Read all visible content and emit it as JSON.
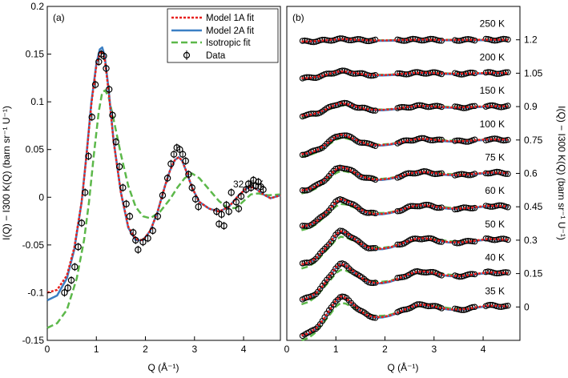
{
  "colors": {
    "model1a": "#e8201c",
    "model2a": "#3b7fc4",
    "isotropic": "#5cb84a",
    "data": "#000000"
  },
  "chart_data": [
    {
      "type": "line",
      "panel_label": "(a)",
      "annotation": "32. 5 K",
      "xlabel": "Q (Å⁻¹)",
      "ylabel": "I(Q) − I300 K(Q) (barn sr⁻¹ U⁻¹)",
      "xlim": [
        0,
        4.75
      ],
      "ylim": [
        -0.15,
        0.2
      ],
      "xticks": [
        0,
        1,
        2,
        3,
        4
      ],
      "xtick_labels": [
        "0",
        "1",
        "2",
        "3",
        "4"
      ],
      "yticks": [
        -0.15,
        -0.1,
        -0.05,
        0,
        0.05,
        0.1,
        0.15,
        0.2
      ],
      "ytick_labels": [
        "-0.15",
        "-0.1",
        "-0.05",
        "0",
        "0.05",
        "0.1",
        "0.15",
        "0.2"
      ],
      "legend": {
        "position": "top-right",
        "entries": [
          {
            "label": "Model 1A fit",
            "style": "dotted",
            "color": "#e8201c"
          },
          {
            "label": "Model 2A fit",
            "style": "solid",
            "color": "#3b7fc4"
          },
          {
            "label": "Isotropic fit",
            "style": "dashed",
            "color": "#5cb84a"
          },
          {
            "label": "Data",
            "style": "marker",
            "color": "#000000"
          }
        ]
      },
      "series": [
        {
          "name": "Model 2A fit",
          "x": [
            0.0,
            0.2,
            0.4,
            0.55,
            0.7,
            0.8,
            0.9,
            1.0,
            1.07,
            1.12,
            1.17,
            1.25,
            1.35,
            1.5,
            1.65,
            1.8,
            1.95,
            2.1,
            2.25,
            2.4,
            2.5,
            2.6,
            2.68,
            2.75,
            2.85,
            2.95,
            3.1,
            3.3,
            3.5,
            3.7,
            3.9,
            4.05,
            4.15,
            4.25,
            4.4,
            4.55,
            4.75
          ],
          "y": [
            -0.108,
            -0.103,
            -0.085,
            -0.055,
            -0.005,
            0.045,
            0.1,
            0.14,
            0.155,
            0.157,
            0.148,
            0.113,
            0.06,
            0.005,
            -0.032,
            -0.045,
            -0.045,
            -0.035,
            -0.015,
            0.012,
            0.028,
            0.039,
            0.042,
            0.038,
            0.025,
            0.01,
            -0.005,
            -0.012,
            -0.015,
            -0.01,
            0.002,
            0.009,
            0.011,
            0.009,
            0.003,
            -0.001,
            0.002
          ]
        },
        {
          "name": "Model 1A fit",
          "x": [
            0.0,
            0.2,
            0.4,
            0.55,
            0.7,
            0.8,
            0.9,
            1.0,
            1.07,
            1.12,
            1.17,
            1.25,
            1.35,
            1.5,
            1.65,
            1.8,
            1.95,
            2.1,
            2.25,
            2.4,
            2.5,
            2.6,
            2.68,
            2.75,
            2.85,
            2.95,
            3.1,
            3.3,
            3.5,
            3.7,
            3.9,
            4.05,
            4.15,
            4.25,
            4.4,
            4.55,
            4.75
          ],
          "y": [
            -0.1,
            -0.097,
            -0.082,
            -0.053,
            -0.005,
            0.044,
            0.098,
            0.138,
            0.151,
            0.153,
            0.145,
            0.111,
            0.059,
            0.005,
            -0.031,
            -0.044,
            -0.045,
            -0.035,
            -0.015,
            0.012,
            0.028,
            0.039,
            0.042,
            0.038,
            0.025,
            0.01,
            -0.005,
            -0.012,
            -0.015,
            -0.01,
            0.002,
            0.009,
            0.011,
            0.009,
            0.003,
            -0.001,
            0.002
          ]
        },
        {
          "name": "Isotropic fit",
          "x": [
            0.0,
            0.2,
            0.4,
            0.6,
            0.75,
            0.85,
            0.95,
            1.05,
            1.12,
            1.18,
            1.25,
            1.35,
            1.5,
            1.65,
            1.8,
            1.95,
            2.1,
            2.3,
            2.5,
            2.65,
            2.8,
            2.95,
            3.1,
            3.3,
            3.5,
            3.7,
            3.85,
            4.0,
            4.15,
            4.3,
            4.5,
            4.75
          ],
          "y": [
            -0.137,
            -0.132,
            -0.118,
            -0.085,
            -0.045,
            -0.005,
            0.045,
            0.09,
            0.11,
            0.112,
            0.105,
            0.082,
            0.045,
            0.012,
            -0.01,
            -0.02,
            -0.022,
            -0.015,
            -0.002,
            0.01,
            0.02,
            0.025,
            0.02,
            0.008,
            -0.004,
            -0.012,
            -0.011,
            -0.004,
            0.003,
            0.004,
            0.002,
            0.003
          ]
        },
        {
          "name": "Data",
          "x": [
            0.35,
            0.42,
            0.49,
            0.56,
            0.63,
            0.7,
            0.77,
            0.84,
            0.91,
            0.98,
            1.05,
            1.1,
            1.15,
            1.2,
            1.26,
            1.33,
            1.4,
            1.47,
            1.54,
            1.61,
            1.68,
            1.75,
            1.8,
            1.85,
            1.95,
            2.05,
            2.15,
            2.25,
            2.35,
            2.45,
            2.52,
            2.58,
            2.64,
            2.7,
            2.76,
            2.82,
            2.88,
            2.95,
            3.02,
            3.08,
            3.45,
            3.5,
            3.55,
            3.6,
            3.65,
            3.7,
            3.75,
            3.85,
            3.9,
            3.95,
            4.05,
            4.1,
            4.15,
            4.2,
            4.25,
            4.3,
            4.35,
            4.4
          ],
          "y": [
            -0.1,
            -0.095,
            -0.087,
            -0.073,
            -0.052,
            -0.027,
            0.005,
            0.043,
            0.084,
            0.118,
            0.142,
            0.15,
            0.148,
            0.135,
            0.113,
            0.086,
            0.058,
            0.032,
            0.01,
            -0.007,
            -0.02,
            -0.037,
            -0.045,
            -0.055,
            -0.047,
            -0.043,
            -0.035,
            -0.02,
            0.002,
            0.02,
            0.035,
            0.045,
            0.052,
            0.05,
            0.045,
            0.038,
            0.024,
            0.01,
            -0.002,
            -0.01,
            -0.015,
            -0.028,
            -0.018,
            -0.03,
            -0.008,
            -0.015,
            0.005,
            -0.005,
            -0.012,
            0.001,
            0.008,
            0.014,
            0.01,
            0.018,
            0.012,
            0.016,
            0.011,
            0.008
          ]
        }
      ]
    },
    {
      "type": "line",
      "panel_label": "(b)",
      "xlabel": "Q (Å⁻¹)",
      "ylabel": "I(Q) − I300 K(Q) (barn sr⁻¹ U⁻¹)",
      "xlim": [
        0,
        4.75
      ],
      "ylim": [
        -0.15,
        1.35
      ],
      "xticks": [
        0,
        1,
        2,
        3,
        4
      ],
      "xtick_labels": [
        "0",
        "1",
        "2",
        "3",
        "4"
      ],
      "yticks": [
        0,
        0.15,
        0.3,
        0.45,
        0.6,
        0.75,
        0.9,
        1.05,
        1.2
      ],
      "ytick_labels": [
        "0",
        "0.15",
        "0.3",
        "0.45",
        "0.6",
        "0.75",
        "0.9",
        "1.05",
        "1.2"
      ],
      "temperatures": [
        {
          "label": "35 K",
          "offset": 0.0,
          "amplitude": 1.0
        },
        {
          "label": "40 K",
          "offset": 0.15,
          "amplitude": 0.92
        },
        {
          "label": "50 K",
          "offset": 0.3,
          "amplitude": 0.85
        },
        {
          "label": "60 K",
          "offset": 0.45,
          "amplitude": 0.7
        },
        {
          "label": "75 K",
          "offset": 0.6,
          "amplitude": 0.6
        },
        {
          "label": "100 K",
          "offset": 0.75,
          "amplitude": 0.5
        },
        {
          "label": "150 K",
          "offset": 0.9,
          "amplitude": 0.32
        },
        {
          "label": "200 K",
          "offset": 1.05,
          "amplitude": 0.18
        },
        {
          "label": "250 K",
          "offset": 1.2,
          "amplitude": 0.06
        }
      ],
      "base_shape": {
        "x": [
          0.3,
          0.45,
          0.6,
          0.75,
          0.9,
          1.0,
          1.1,
          1.2,
          1.35,
          1.5,
          1.65,
          1.8,
          1.95,
          2.1,
          2.3,
          2.5,
          2.65,
          2.8,
          2.95,
          3.1,
          3.3,
          3.5,
          3.7,
          3.9,
          4.1,
          4.3,
          4.5
        ],
        "y": [
          -0.128,
          -0.118,
          -0.095,
          -0.055,
          -0.005,
          0.03,
          0.048,
          0.04,
          0.012,
          -0.018,
          -0.038,
          -0.046,
          -0.045,
          -0.038,
          -0.022,
          -0.002,
          0.008,
          0.01,
          0.005,
          -0.003,
          -0.01,
          -0.012,
          -0.008,
          0.0,
          0.006,
          0.005,
          0.002
        ]
      },
      "iso_shape": {
        "x": [
          0.3,
          0.45,
          0.6,
          0.75,
          0.9,
          1.0,
          1.1,
          1.2,
          1.35,
          1.5,
          1.65,
          1.8,
          1.95,
          2.1,
          2.3,
          2.5,
          2.65,
          2.8,
          2.95,
          3.1,
          3.3,
          3.5,
          3.7,
          3.9,
          4.1,
          4.3,
          4.5
        ],
        "y": [
          -0.15,
          -0.138,
          -0.112,
          -0.07,
          -0.028,
          0.002,
          0.018,
          0.015,
          -0.002,
          -0.02,
          -0.033,
          -0.04,
          -0.04,
          -0.035,
          -0.022,
          -0.008,
          0.001,
          0.006,
          0.006,
          0.002,
          -0.005,
          -0.009,
          -0.008,
          -0.002,
          0.004,
          0.004,
          0.002
        ]
      }
    }
  ]
}
